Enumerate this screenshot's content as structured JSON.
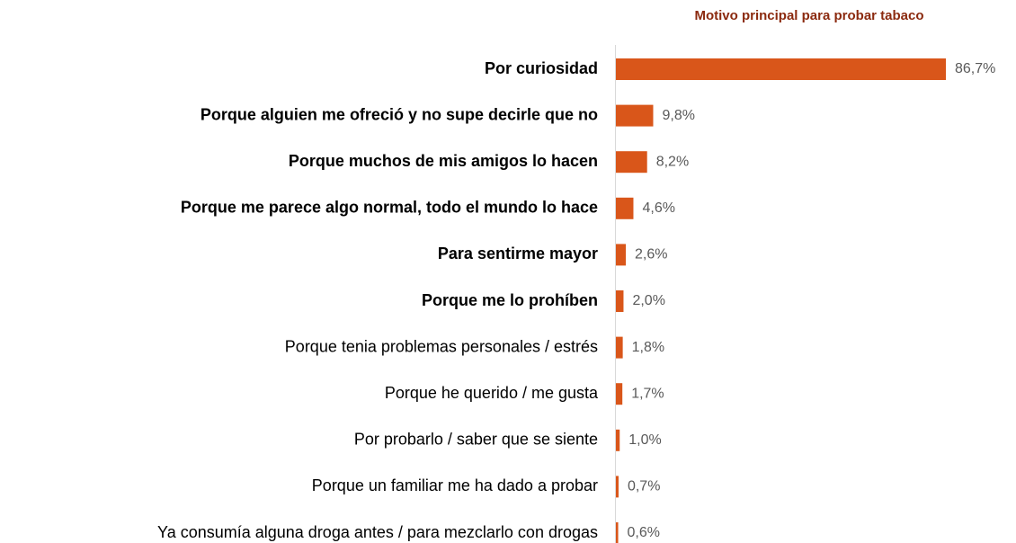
{
  "chart_data": {
    "type": "bar",
    "orientation": "horizontal",
    "title": "Motivo principal para probar tabaco",
    "categories": [
      "Por curiosidad",
      "Porque alguien me ofreció y no supe decirle que no",
      "Porque muchos de mis amigos lo hacen",
      "Porque me parece algo normal, todo el mundo lo hace",
      "Para sentirme mayor",
      "Porque me lo prohíben",
      "Porque tenia problemas personales / estrés",
      "Porque he querido / me gusta",
      "Por probarlo / saber que se siente",
      "Porque un familiar me ha dado a probar",
      "Ya consumía alguna droga antes / para mezclarlo con drogas"
    ],
    "category_bold": [
      true,
      true,
      true,
      true,
      true,
      true,
      false,
      false,
      false,
      false,
      false
    ],
    "values": [
      86.7,
      9.8,
      8.2,
      4.6,
      2.6,
      2.0,
      1.8,
      1.7,
      1.0,
      0.7,
      0.6
    ],
    "value_labels": [
      "86,7%",
      "9,8%",
      "8,2%",
      "4,6%",
      "2,6%",
      "2,0%",
      "1,8%",
      "1,7%",
      "1,0%",
      "0,7%",
      "0,6%"
    ],
    "color": "#d9561a"
  }
}
